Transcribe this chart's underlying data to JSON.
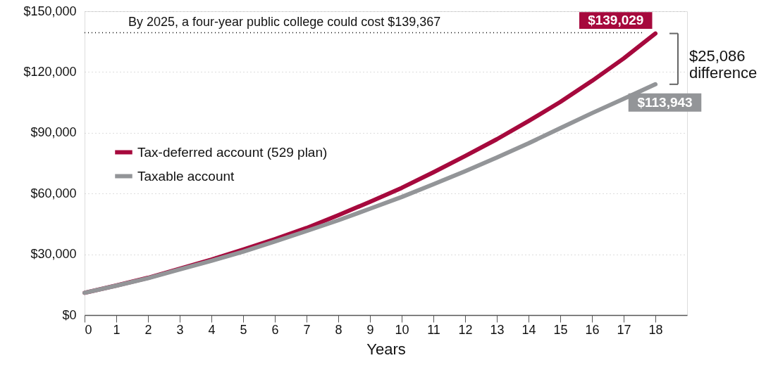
{
  "chart_data": {
    "type": "line",
    "xlabel": "Years",
    "x": [
      0,
      1,
      2,
      3,
      4,
      5,
      6,
      7,
      8,
      9,
      10,
      11,
      12,
      13,
      14,
      15,
      16,
      17,
      18
    ],
    "series": [
      {
        "name": "Tax-deferred account (529 plan)",
        "color": "#a6093d",
        "values": [
          11000,
          14600,
          18400,
          22900,
          27400,
          32300,
          37500,
          43000,
          49300,
          55900,
          62800,
          70500,
          78500,
          86800,
          95800,
          105200,
          115600,
          126700,
          139029
        ],
        "value_labels": [
          null,
          null,
          null,
          null,
          null,
          null,
          null,
          null,
          null,
          null,
          null,
          null,
          null,
          null,
          null,
          null,
          null,
          null,
          "$139,029"
        ]
      },
      {
        "name": "Taxable account",
        "color": "#939598",
        "values": [
          11000,
          14500,
          18200,
          22500,
          26800,
          31300,
          36300,
          41500,
          46800,
          52500,
          58300,
          64600,
          71000,
          77800,
          84800,
          92300,
          99700,
          106800,
          113943
        ],
        "value_labels": [
          null,
          null,
          null,
          null,
          null,
          null,
          null,
          null,
          null,
          null,
          null,
          null,
          null,
          null,
          null,
          null,
          null,
          null,
          "$113,943"
        ]
      }
    ],
    "xlim": [
      0,
      19
    ],
    "xticks": [
      0,
      1,
      2,
      3,
      4,
      5,
      6,
      7,
      8,
      9,
      10,
      11,
      12,
      13,
      14,
      15,
      16,
      17,
      18
    ],
    "ylim": [
      0,
      150000
    ],
    "yticks": [
      {
        "value": 0,
        "label": "$0"
      },
      {
        "value": 30000,
        "label": "$30,000"
      },
      {
        "value": 60000,
        "label": "$60,000"
      },
      {
        "value": 90000,
        "label": "$90,000"
      },
      {
        "value": 120000,
        "label": "$120,000"
      },
      {
        "value": 150000,
        "label": "$150,000"
      }
    ],
    "ref_lines": [
      {
        "axis": "y",
        "value": 139367,
        "label": "By 2025, a four-year public college could cost $139,367",
        "line_style": "dotted",
        "color": "#000000"
      }
    ],
    "annotations": [
      "$25,086 difference"
    ],
    "grid": "y",
    "legend": "left",
    "marker": "none",
    "line_style": "solid"
  }
}
